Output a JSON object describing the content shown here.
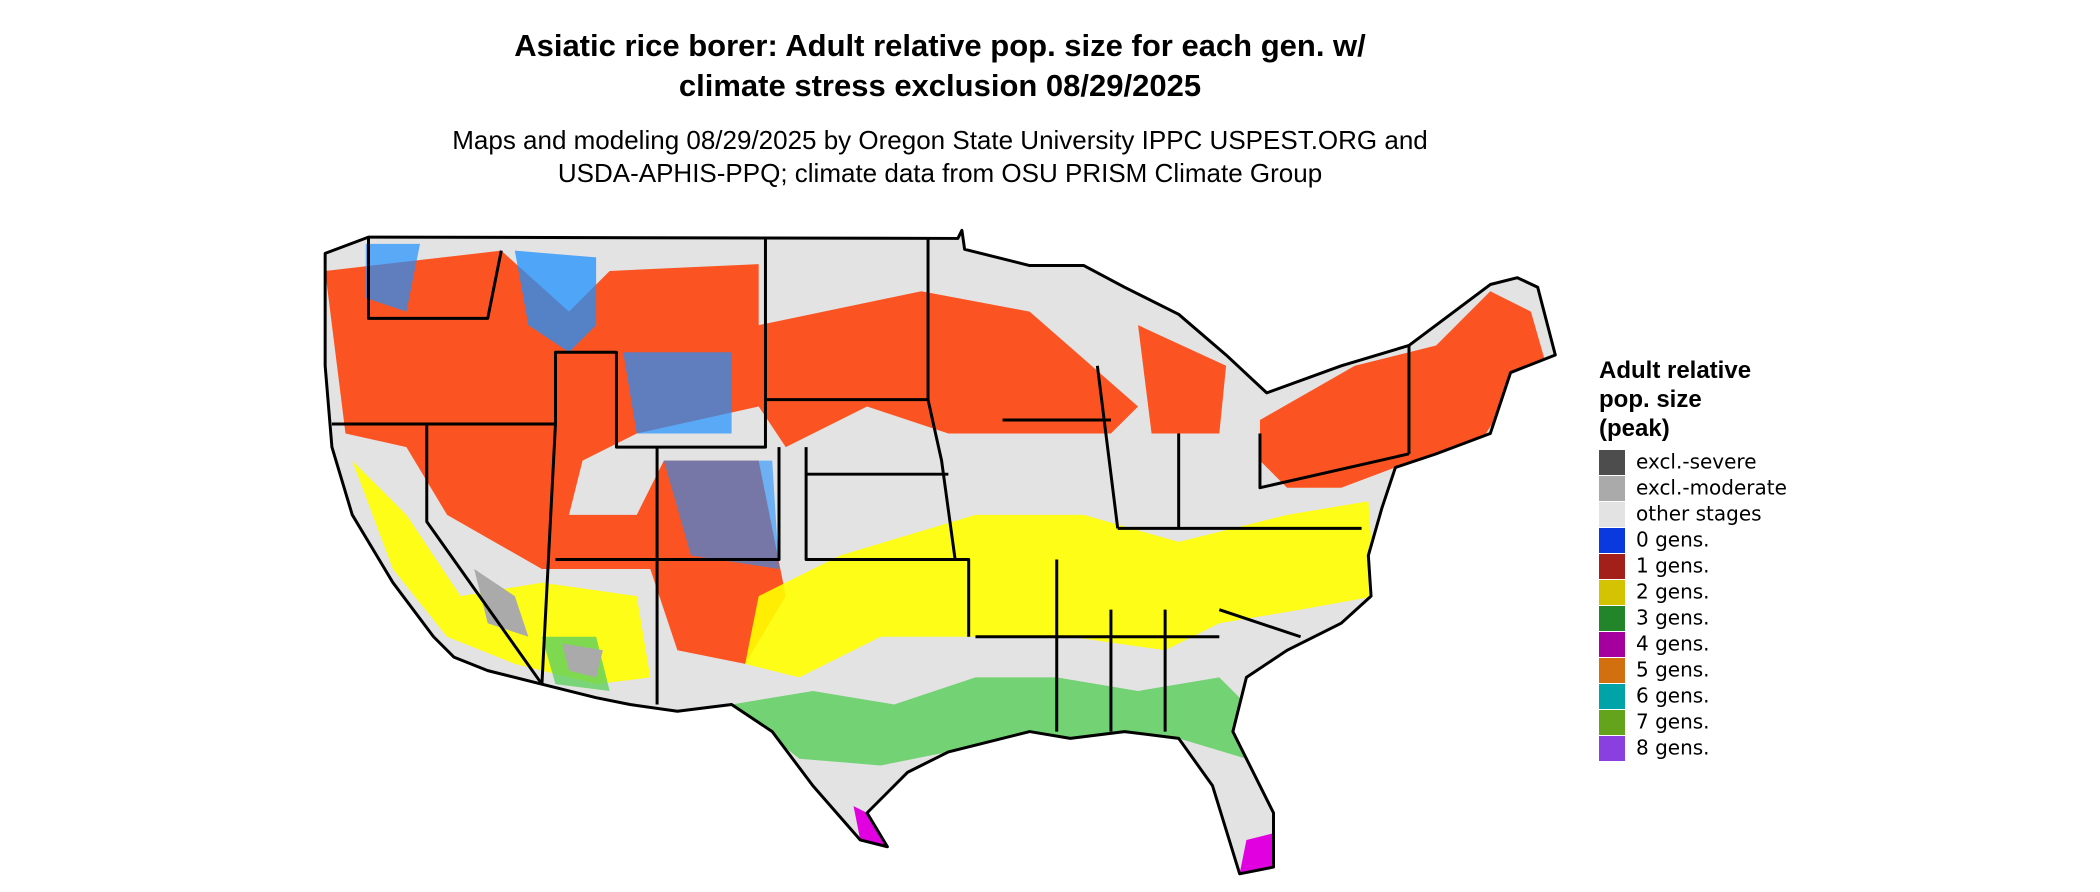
{
  "header": {
    "title": [
      "Asiatic rice borer: Adult relative pop. size for each gen. w/",
      "climate stress exclusion 08/29/2025"
    ],
    "subtitle": [
      "Maps and modeling 08/29/2025 by Oregon State University IPPC USPEST.ORG and",
      "USDA-APHIS-PPQ; climate data from OSU PRISM Climate Group"
    ]
  },
  "legend": {
    "title": [
      "Adult relative",
      "pop. size",
      "(peak)"
    ],
    "items": [
      {
        "label": "excl.-severe",
        "color": "#4d4d4d"
      },
      {
        "label": "excl.-moderate",
        "color": "#aaaaaa"
      },
      {
        "label": "other stages",
        "color": "#e3e3e3"
      },
      {
        "label": "0 gens.",
        "color": "#0a3adf"
      },
      {
        "label": "1 gens.",
        "color": "#a3201a"
      },
      {
        "label": "2 gens.",
        "color": "#d4c300"
      },
      {
        "label": "3 gens.",
        "color": "#23852a"
      },
      {
        "label": "4 gens.",
        "color": "#a5009f"
      },
      {
        "label": "5 gens.",
        "color": "#d2700f"
      },
      {
        "label": "6 gens.",
        "color": "#00a3a8"
      },
      {
        "label": "7 gens.",
        "color": "#64a31c"
      },
      {
        "label": "8 gens.",
        "color": "#8a3fe0"
      }
    ]
  }
}
